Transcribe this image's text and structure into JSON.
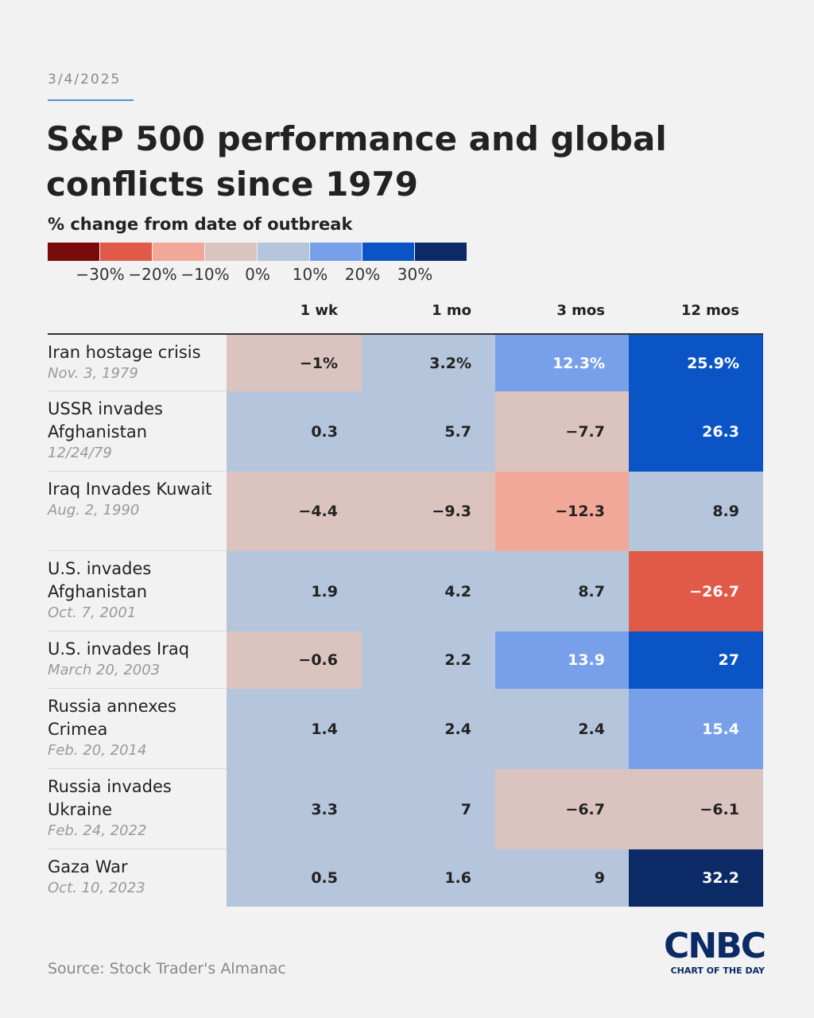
{
  "header": {
    "date": "3/4/2025",
    "title": "S&P 500 performance and global conflicts since 1979",
    "subtitle": "% change from date of outbreak"
  },
  "legend": {
    "colors": [
      "#7a0b0b",
      "#e15a48",
      "#f2a898",
      "#dbc4c0",
      "#b5c5dc",
      "#78a0ea",
      "#0a54c6",
      "#0b2a66"
    ],
    "labels": [
      "−30%",
      "−20%",
      "−10%",
      "0%",
      "10%",
      "20%",
      "30%"
    ]
  },
  "table": {
    "columns": [
      "1 wk",
      "1 mo",
      "3 mos",
      "12 mos"
    ],
    "rows": [
      {
        "name": "Iran hostage crisis",
        "date": "Nov. 3, 1979",
        "cells": [
          {
            "text": "−1%",
            "color": "#dbc4c0"
          },
          {
            "text": "3.2%",
            "color": "#b5c5dc"
          },
          {
            "text": "12.3%",
            "color": "#78a0ea"
          },
          {
            "text": "25.9%",
            "color": "#0a54c6"
          }
        ]
      },
      {
        "name": "USSR invades Afghanistan",
        "date": "12/24/79",
        "cells": [
          {
            "text": "0.3",
            "color": "#b5c5dc"
          },
          {
            "text": "5.7",
            "color": "#b5c5dc"
          },
          {
            "text": "−7.7",
            "color": "#dbc4c0"
          },
          {
            "text": "26.3",
            "color": "#0a54c6"
          }
        ]
      },
      {
        "name": "Iraq Invades Kuwait",
        "date": "Aug. 2, 1990",
        "cells": [
          {
            "text": "−4.4",
            "color": "#dbc4c0"
          },
          {
            "text": "−9.3",
            "color": "#dbc4c0"
          },
          {
            "text": "−12.3",
            "color": "#f2a898"
          },
          {
            "text": "8.9",
            "color": "#b5c5dc"
          }
        ]
      },
      {
        "name": "U.S. invades Afghanistan",
        "date": "Oct. 7, 2001",
        "cells": [
          {
            "text": "1.9",
            "color": "#b5c5dc"
          },
          {
            "text": "4.2",
            "color": "#b5c5dc"
          },
          {
            "text": "8.7",
            "color": "#b5c5dc"
          },
          {
            "text": "−26.7",
            "color": "#e15a48"
          }
        ]
      },
      {
        "name": "U.S. invades Iraq",
        "date": "March 20, 2003",
        "cells": [
          {
            "text": "−0.6",
            "color": "#dbc4c0"
          },
          {
            "text": "2.2",
            "color": "#b5c5dc"
          },
          {
            "text": "13.9",
            "color": "#78a0ea"
          },
          {
            "text": "27",
            "color": "#0a54c6"
          }
        ]
      },
      {
        "name": "Russia annexes Crimea",
        "date": "Feb. 20, 2014",
        "cells": [
          {
            "text": "1.4",
            "color": "#b5c5dc"
          },
          {
            "text": "2.4",
            "color": "#b5c5dc"
          },
          {
            "text": "2.4",
            "color": "#b5c5dc"
          },
          {
            "text": "15.4",
            "color": "#78a0ea"
          }
        ]
      },
      {
        "name": "Russia invades Ukraine",
        "date": "Feb. 24, 2022",
        "cells": [
          {
            "text": "3.3",
            "color": "#b5c5dc"
          },
          {
            "text": "7",
            "color": "#b5c5dc"
          },
          {
            "text": "−6.7",
            "color": "#dbc4c0"
          },
          {
            "text": "−6.1",
            "color": "#dbc4c0"
          }
        ]
      },
      {
        "name": "Gaza War",
        "date": "Oct. 10, 2023",
        "cells": [
          {
            "text": "0.5",
            "color": "#b5c5dc"
          },
          {
            "text": "1.6",
            "color": "#b5c5dc"
          },
          {
            "text": "9",
            "color": "#b5c5dc"
          },
          {
            "text": "32.2",
            "color": "#0b2a66"
          }
        ]
      }
    ]
  },
  "footer": {
    "source": "Source: Stock Trader's Almanac",
    "brand": "CNBC",
    "tagline": "CHART OF THE DAY"
  }
}
